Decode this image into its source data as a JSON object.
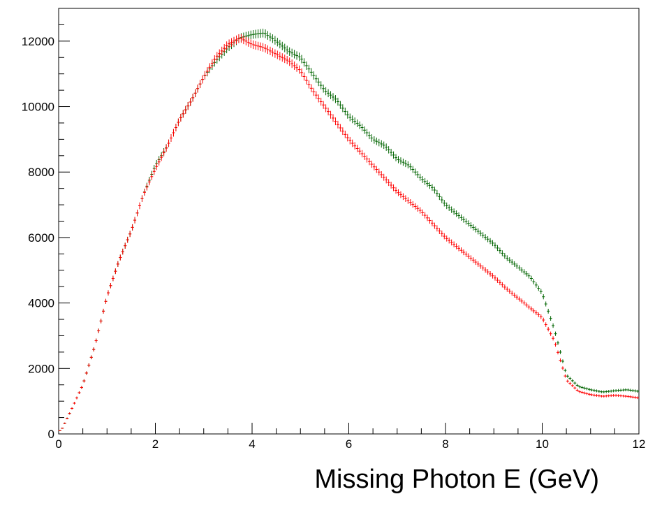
{
  "chart_data": {
    "type": "scatter",
    "title": "",
    "xlabel": "Missing Photon E (GeV)",
    "ylabel": "",
    "xlim": [
      0,
      12
    ],
    "ylim": [
      0,
      13000
    ],
    "x_ticks": [
      0,
      2,
      4,
      6,
      8,
      10,
      12
    ],
    "x_tick_labels": [
      "0",
      "2",
      "4",
      "6",
      "8",
      "10",
      "12"
    ],
    "y_ticks": [
      0,
      2000,
      4000,
      6000,
      8000,
      10000,
      12000
    ],
    "y_tick_labels": [
      "0",
      "2000",
      "4000",
      "6000",
      "8000",
      "10000",
      "12000"
    ],
    "grid": false,
    "legend": "none",
    "error_bars": true,
    "series": [
      {
        "color": "#006400",
        "x": [
          0.05,
          0.25,
          0.5,
          0.75,
          1.0,
          1.25,
          1.5,
          1.75,
          2.0,
          2.25,
          2.5,
          2.75,
          3.0,
          3.25,
          3.5,
          3.75,
          4.0,
          4.25,
          4.5,
          4.75,
          5.0,
          5.25,
          5.5,
          5.75,
          6.0,
          6.25,
          6.5,
          6.75,
          7.0,
          7.25,
          7.5,
          7.75,
          8.0,
          8.25,
          8.5,
          8.75,
          9.0,
          9.25,
          9.5,
          9.75,
          10.0,
          10.25,
          10.5,
          10.75,
          11.0,
          11.25,
          11.5,
          11.75,
          12.0
        ],
        "y": [
          100,
          700,
          1500,
          2700,
          4200,
          5300,
          6200,
          7300,
          8200,
          8800,
          9600,
          10200,
          10900,
          11400,
          11800,
          12100,
          12200,
          12250,
          12000,
          11700,
          11500,
          11000,
          10500,
          10200,
          9700,
          9400,
          9000,
          8800,
          8400,
          8200,
          7800,
          7500,
          7000,
          6700,
          6400,
          6100,
          5800,
          5400,
          5100,
          4800,
          4300,
          3200,
          1800,
          1450,
          1350,
          1280,
          1320,
          1350,
          1300
        ]
      },
      {
        "color": "#ff0000",
        "x": [
          0.05,
          0.25,
          0.5,
          0.75,
          1.0,
          1.25,
          1.5,
          1.75,
          2.0,
          2.25,
          2.5,
          2.75,
          3.0,
          3.25,
          3.5,
          3.75,
          4.0,
          4.25,
          4.5,
          4.75,
          5.0,
          5.25,
          5.5,
          5.75,
          6.0,
          6.25,
          6.5,
          6.75,
          7.0,
          7.25,
          7.5,
          7.75,
          8.0,
          8.25,
          8.5,
          8.75,
          9.0,
          9.25,
          9.5,
          9.75,
          10.0,
          10.25,
          10.5,
          10.75,
          11.0,
          11.25,
          11.5,
          11.75,
          12.0
        ],
        "y": [
          100,
          700,
          1500,
          2700,
          4200,
          5300,
          6200,
          7300,
          8100,
          8800,
          9600,
          10200,
          10900,
          11500,
          11900,
          12100,
          11900,
          11800,
          11600,
          11400,
          11100,
          10500,
          10000,
          9500,
          9000,
          8600,
          8200,
          7800,
          7400,
          7100,
          6800,
          6400,
          6000,
          5700,
          5400,
          5100,
          4800,
          4450,
          4150,
          3850,
          3550,
          2850,
          1650,
          1300,
          1200,
          1150,
          1180,
          1150,
          1100
        ]
      }
    ]
  }
}
